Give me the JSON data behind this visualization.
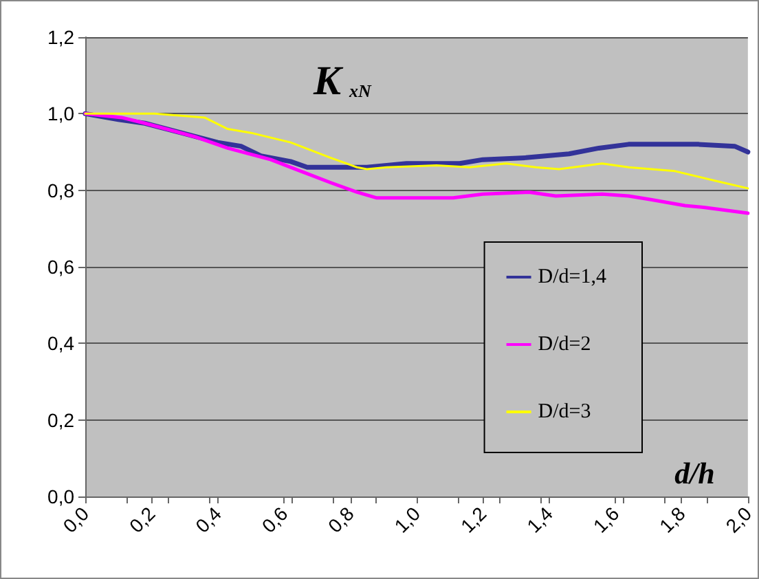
{
  "chart_data": {
    "type": "line",
    "title": "K$_{xN}$",
    "xlabel": "d/h",
    "x": [
      0,
      0.1,
      0.18,
      0.29,
      0.4,
      0.47,
      0.53,
      0.62,
      0.67,
      0.76,
      0.85,
      0.97,
      1.13,
      1.2,
      1.33,
      1.46,
      1.55,
      1.64,
      1.85,
      1.96,
      2.0
    ],
    "series": [
      {
        "name": "D/d=1,4",
        "color": "#333399",
        "values": [
          1.0,
          0.985,
          0.975,
          0.95,
          0.925,
          0.915,
          0.89,
          0.875,
          0.86,
          0.86,
          0.86,
          0.87,
          0.87,
          0.88,
          0.885,
          0.895,
          0.91,
          0.92,
          0.92,
          0.915,
          0.9
        ]
      },
      {
        "name": "D/d=2",
        "color": "#ff00ff",
        "x": [
          0,
          0.11,
          0.18,
          0.33,
          0.43,
          0.56,
          0.65,
          0.74,
          0.82,
          0.88,
          1.06,
          1.11,
          1.2,
          1.34,
          1.42,
          1.56,
          1.64,
          1.71,
          1.81,
          1.87,
          2.0
        ],
        "values": [
          1.0,
          0.99,
          0.975,
          0.94,
          0.91,
          0.88,
          0.85,
          0.82,
          0.795,
          0.78,
          0.78,
          0.78,
          0.79,
          0.795,
          0.785,
          0.79,
          0.785,
          0.775,
          0.76,
          0.755,
          0.74
        ]
      },
      {
        "name": "D/d=3",
        "color": "#ffff00",
        "x": [
          0,
          0.21,
          0.36,
          0.43,
          0.5,
          0.62,
          0.74,
          0.82,
          0.85,
          0.91,
          1.06,
          1.16,
          1.27,
          1.36,
          1.43,
          1.56,
          1.64,
          1.78,
          1.9,
          2.0
        ],
        "values": [
          1.0,
          1.0,
          0.99,
          0.96,
          0.95,
          0.925,
          0.885,
          0.86,
          0.855,
          0.86,
          0.865,
          0.86,
          0.87,
          0.86,
          0.855,
          0.87,
          0.86,
          0.85,
          0.825,
          0.805
        ]
      }
    ],
    "xlim": [
      0,
      2.0
    ],
    "xticks": [
      {
        "value": 0,
        "label": "0,0"
      },
      {
        "value": 0.2,
        "label": "0,2"
      },
      {
        "value": 0.4,
        "label": "0,4"
      },
      {
        "value": 0.6,
        "label": "0,6"
      },
      {
        "value": 0.8,
        "label": "0,8"
      },
      {
        "value": 1.0,
        "label": "1,0"
      },
      {
        "value": 1.2,
        "label": "1,2"
      },
      {
        "value": 1.4,
        "label": "1,4"
      },
      {
        "value": 1.6,
        "label": "1,6"
      },
      {
        "value": 1.8,
        "label": "1,8"
      },
      {
        "value": 2.0,
        "label": "2,0"
      }
    ],
    "ylim": [
      0,
      1.2
    ],
    "yticks": [
      {
        "value": 0,
        "label": "0,0"
      },
      {
        "value": 0.2,
        "label": "0,2"
      },
      {
        "value": 0.4,
        "label": "0,4"
      },
      {
        "value": 0.6,
        "label": "0,6"
      },
      {
        "value": 0.8,
        "label": "0,8"
      },
      {
        "value": 1.0,
        "label": "1,0"
      },
      {
        "value": 1.2,
        "label": "1,2"
      }
    ],
    "grid": "y",
    "legend": "right",
    "marker": "none",
    "line_style": "solid"
  }
}
